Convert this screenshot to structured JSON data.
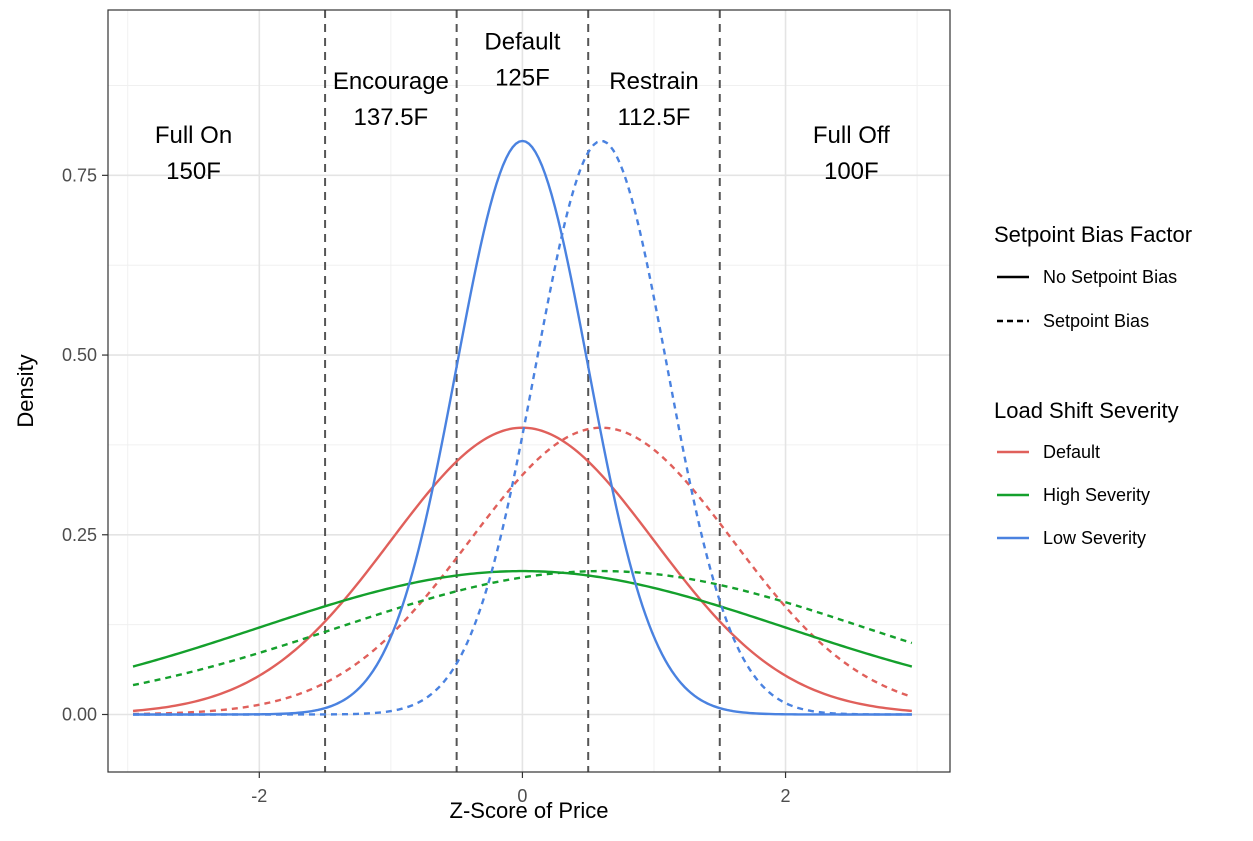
{
  "chart_data": {
    "type": "line",
    "xlabel": "Z-Score of Price",
    "ylabel": "Density",
    "xlim": [
      -3.15,
      3.25
    ],
    "ylim": [
      -0.08,
      0.98
    ],
    "x_ticks": [
      -2,
      0,
      2
    ],
    "x_tick_labels": [
      "-2",
      "0",
      "2"
    ],
    "y_ticks": [
      0,
      0.25,
      0.5,
      0.75
    ],
    "y_tick_labels": [
      "0.00",
      "0.25",
      "0.50",
      "0.75"
    ],
    "grid": true,
    "x_range": [
      -2.96,
      2.96
    ],
    "series": [
      {
        "name": "No Setpoint Bias / Default",
        "severity": "Default",
        "bias": "No Setpoint Bias",
        "mean": 0.0,
        "sd": 1.0,
        "color": "#E0605B",
        "linetype": "solid"
      },
      {
        "name": "Setpoint Bias / Default",
        "severity": "Default",
        "bias": "Setpoint Bias",
        "mean": 0.6,
        "sd": 1.0,
        "color": "#E0605B",
        "linetype": "dashed"
      },
      {
        "name": "No Setpoint Bias / High Severity",
        "severity": "High Severity",
        "bias": "No Setpoint Bias",
        "mean": 0.0,
        "sd": 2.0,
        "color": "#14A02C",
        "linetype": "solid"
      },
      {
        "name": "Setpoint Bias / High Severity",
        "severity": "High Severity",
        "bias": "Setpoint Bias",
        "mean": 0.6,
        "sd": 2.0,
        "color": "#14A02C",
        "linetype": "dashed"
      },
      {
        "name": "No Setpoint Bias / Low Severity",
        "severity": "Low Severity",
        "bias": "No Setpoint Bias",
        "mean": 0.0,
        "sd": 0.5,
        "color": "#4A82E0",
        "linetype": "solid"
      },
      {
        "name": "Setpoint Bias / Low Severity",
        "severity": "Low Severity",
        "bias": "Setpoint Bias",
        "mean": 0.6,
        "sd": 0.5,
        "color": "#4A82E0",
        "linetype": "dashed"
      }
    ],
    "vlines": [
      -1.5,
      -0.5,
      0.5,
      1.5
    ],
    "zone_labels": [
      {
        "x": -2.5,
        "y": 0.795,
        "line1": "Full On",
        "line2": "150F"
      },
      {
        "x": -1.0,
        "y": 0.87,
        "line1": "Encourage",
        "line2": "137.5F"
      },
      {
        "x": 0.0,
        "y": 0.925,
        "line1": "Default",
        "line2": "125F"
      },
      {
        "x": 1.0,
        "y": 0.87,
        "line1": "Restrain",
        "line2": "112.5F"
      },
      {
        "x": 2.5,
        "y": 0.795,
        "line1": "Full Off",
        "line2": "100F"
      }
    ],
    "legend": {
      "placement": "right",
      "linetype_title": "Setpoint Bias Factor",
      "linetype_items": [
        {
          "label": "No Setpoint Bias",
          "linetype": "solid"
        },
        {
          "label": "Setpoint Bias",
          "linetype": "dashed"
        }
      ],
      "color_title": "Load Shift Severity",
      "color_items": [
        {
          "label": "Default",
          "color": "#E0605B"
        },
        {
          "label": "High Severity",
          "color": "#14A02C"
        },
        {
          "label": "Low Severity",
          "color": "#4A82E0"
        }
      ]
    }
  }
}
